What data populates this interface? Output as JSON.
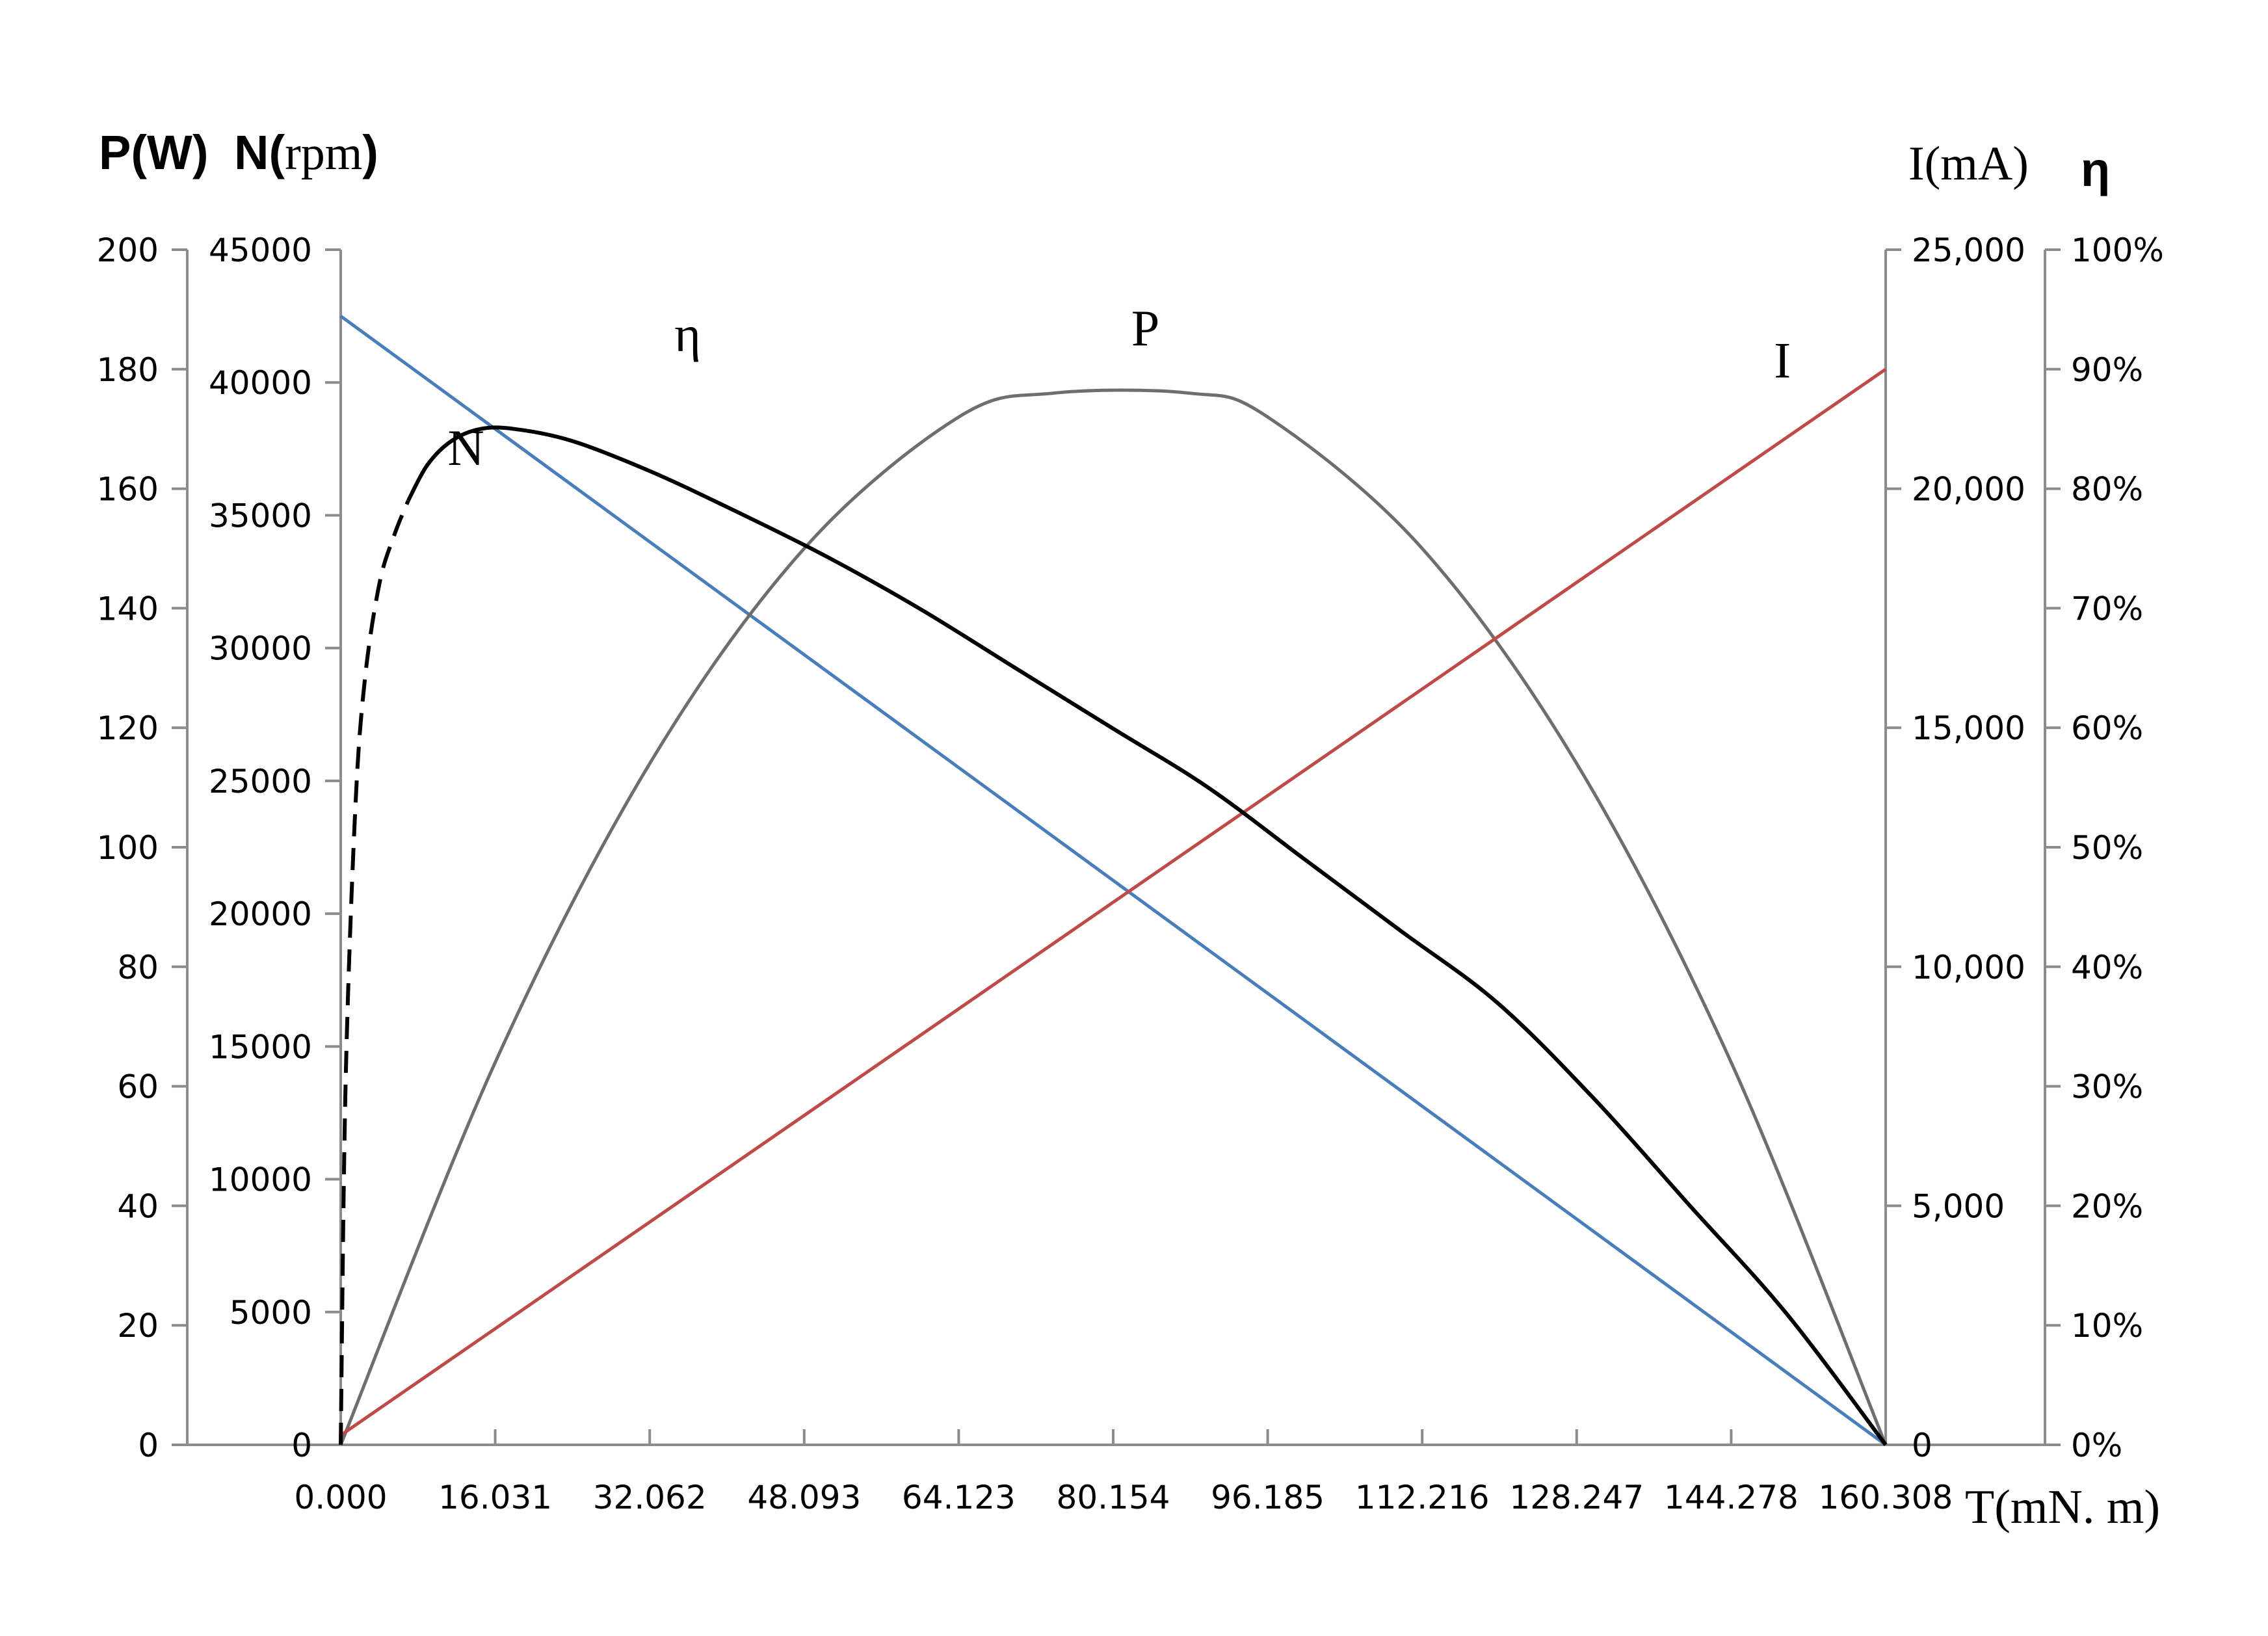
{
  "chart_data": {
    "type": "line",
    "title": "",
    "axis_titles": {
      "left_outer": "P(W)",
      "left_inner_bold": "N(",
      "left_inner_unit": "rpm",
      "left_inner_close": ")",
      "right_inner": "I(mA)",
      "right_outer": "η",
      "x": "T(mN. m)"
    },
    "x_axis": {
      "min": 0,
      "max": 160.308,
      "ticks": [
        "0.000",
        "16.031",
        "32.062",
        "48.093",
        "64.123",
        "80.154",
        "96.185",
        "112.216",
        "128.247",
        "144.278",
        "160.308"
      ]
    },
    "y_axes": {
      "P": {
        "min": 0,
        "max": 200,
        "ticks": [
          "0",
          "20",
          "40",
          "60",
          "80",
          "100",
          "120",
          "140",
          "160",
          "180",
          "200"
        ]
      },
      "N": {
        "min": 0,
        "max": 45000,
        "ticks": [
          "0",
          "5000",
          "10000",
          "15000",
          "20000",
          "25000",
          "30000",
          "35000",
          "40000",
          "45000"
        ]
      },
      "I": {
        "min": 0,
        "max": 25000,
        "ticks": [
          "0",
          "5,000",
          "10,000",
          "15,000",
          "20,000",
          "25,000"
        ]
      },
      "eta": {
        "min": 0,
        "max": 1,
        "ticks": [
          "0%",
          "10%",
          "20%",
          "30%",
          "40%",
          "50%",
          "60%",
          "70%",
          "80%",
          "90%",
          "100%"
        ]
      }
    },
    "series": [
      {
        "name": "N",
        "axis": "N",
        "color": "#4a7ebb",
        "x": [
          0,
          160.308
        ],
        "values": [
          42500,
          0
        ]
      },
      {
        "name": "P",
        "axis": "P",
        "color": "#6e6e6e",
        "x": [
          0,
          16.031,
          32.062,
          48.093,
          64.123,
          74,
          88,
          96.185,
          112.216,
          128.247,
          144.278,
          160.308
        ],
        "values": [
          0,
          64,
          114,
          150,
          172,
          176,
          176,
          172,
          150,
          114,
          64,
          0
        ]
      },
      {
        "name": "I",
        "axis": "I",
        "color": "#be4b48",
        "x": [
          0,
          160.308
        ],
        "values": [
          200,
          22500
        ]
      },
      {
        "name": "η",
        "axis": "eta",
        "color": "#000000",
        "x": [
          0,
          0.5,
          1.5,
          2.5,
          4,
          5.5,
          7,
          9,
          11.5,
          14.5,
          18,
          24,
          32,
          40,
          50,
          60,
          70,
          80,
          90,
          100,
          110,
          120,
          130,
          140,
          150,
          160.308
        ],
        "values": [
          0,
          0.3,
          0.53,
          0.64,
          0.72,
          0.76,
          0.79,
          0.82,
          0.84,
          0.85,
          0.85,
          0.84,
          0.815,
          0.785,
          0.745,
          0.7,
          0.65,
          0.6,
          0.55,
          0.49,
          0.43,
          0.37,
          0.29,
          0.2,
          0.11,
          0
        ],
        "dashed_until_x": 6
      }
    ],
    "curve_labels": [
      {
        "text": "η",
        "series": "η",
        "x": 36,
        "y_frac": 0.915
      },
      {
        "text": "N",
        "series": "η",
        "x": 13,
        "y_frac": 0.82
      },
      {
        "text": "P",
        "series": "P",
        "x": 83.5,
        "y_frac": 0.92
      },
      {
        "text": "I",
        "series": "I",
        "x": 149.6,
        "y_frac": 0.893
      }
    ],
    "grid": false,
    "legend": "none"
  }
}
